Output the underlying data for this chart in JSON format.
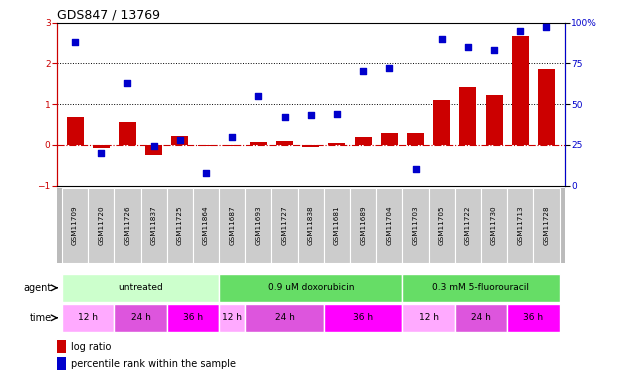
{
  "title": "GDS847 / 13769",
  "samples": [
    "GSM11709",
    "GSM11720",
    "GSM11726",
    "GSM11837",
    "GSM11725",
    "GSM11864",
    "GSM11687",
    "GSM11693",
    "GSM11727",
    "GSM11838",
    "GSM11681",
    "GSM11689",
    "GSM11704",
    "GSM11703",
    "GSM11705",
    "GSM11722",
    "GSM11730",
    "GSM11713",
    "GSM11728"
  ],
  "log_ratio": [
    0.68,
    -0.08,
    0.55,
    -0.25,
    0.22,
    -0.02,
    -0.04,
    0.07,
    0.1,
    -0.05,
    0.05,
    0.2,
    0.28,
    0.28,
    1.1,
    1.42,
    1.22,
    2.68,
    1.85
  ],
  "percentile_rank": [
    88,
    20,
    63,
    24,
    28,
    8,
    30,
    55,
    42,
    43,
    44,
    70,
    72,
    10,
    90,
    85,
    83,
    95,
    97
  ],
  "log_ratio_color": "#cc0000",
  "percentile_color": "#0000cc",
  "ylim_left": [
    -1,
    3
  ],
  "ylim_right": [
    0,
    100
  ],
  "yticks_left": [
    -1,
    0,
    1,
    2,
    3
  ],
  "yticks_right": [
    0,
    25,
    50,
    75,
    100
  ],
  "hline_vals": [
    1.0,
    2.0
  ],
  "agent_groups": [
    {
      "label": "untreated",
      "start": 0,
      "end": 6,
      "color": "#ccffcc"
    },
    {
      "label": "0.9 uM doxorubicin",
      "start": 6,
      "end": 13,
      "color": "#66dd66"
    },
    {
      "label": "0.3 mM 5-fluorouracil",
      "start": 13,
      "end": 19,
      "color": "#66dd66"
    }
  ],
  "time_groups": [
    {
      "label": "12 h",
      "start": 0,
      "end": 2,
      "color": "#ffaaff"
    },
    {
      "label": "24 h",
      "start": 2,
      "end": 4,
      "color": "#dd55dd"
    },
    {
      "label": "36 h",
      "start": 4,
      "end": 6,
      "color": "#ff00ff"
    },
    {
      "label": "12 h",
      "start": 6,
      "end": 7,
      "color": "#ffaaff"
    },
    {
      "label": "24 h",
      "start": 7,
      "end": 10,
      "color": "#dd55dd"
    },
    {
      "label": "36 h",
      "start": 10,
      "end": 13,
      "color": "#ff00ff"
    },
    {
      "label": "12 h",
      "start": 13,
      "end": 15,
      "color": "#ffaaff"
    },
    {
      "label": "24 h",
      "start": 15,
      "end": 17,
      "color": "#dd55dd"
    },
    {
      "label": "36 h",
      "start": 17,
      "end": 19,
      "color": "#ff00ff"
    }
  ],
  "bg_color": "#ffffff"
}
